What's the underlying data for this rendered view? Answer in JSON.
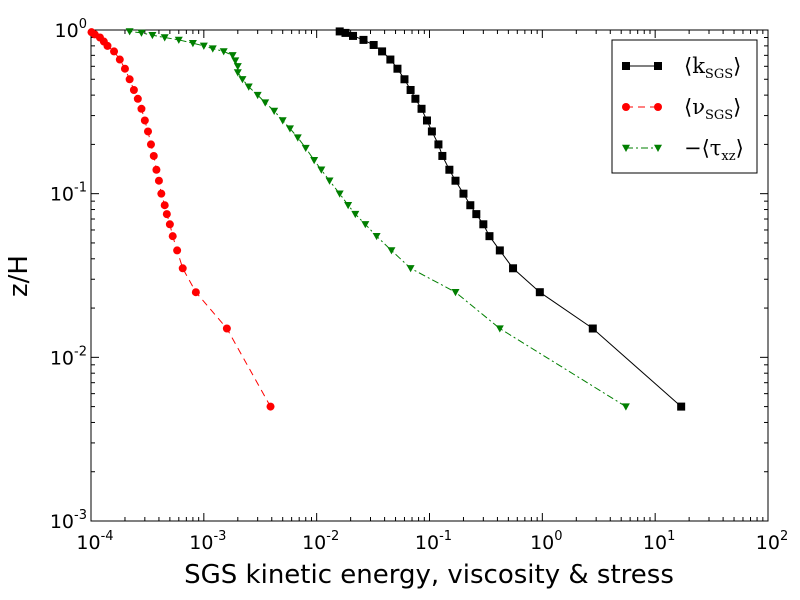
{
  "chart_data": {
    "type": "line",
    "xlabel": "SGS kinetic energy, viscosity & stress",
    "ylabel": "z/H",
    "xscale": "log",
    "yscale": "log",
    "xlim": [
      0.0001,
      100
    ],
    "ylim": [
      0.001,
      1
    ],
    "x_ticks": [
      {
        "base": "10",
        "exp": "-4"
      },
      {
        "base": "10",
        "exp": "-3"
      },
      {
        "base": "10",
        "exp": "-2"
      },
      {
        "base": "10",
        "exp": "-1"
      },
      {
        "base": "10",
        "exp": "0"
      },
      {
        "base": "10",
        "exp": "1"
      },
      {
        "base": "10",
        "exp": "2"
      }
    ],
    "y_ticks": [
      {
        "base": "10",
        "exp": "-3"
      },
      {
        "base": "10",
        "exp": "-2"
      },
      {
        "base": "10",
        "exp": "-1"
      },
      {
        "base": "10",
        "exp": "0"
      }
    ],
    "grid": false,
    "legend_position": "top-right",
    "series": [
      {
        "name": "⟨k_SGS⟩",
        "legend_main": "⟨k",
        "legend_sub": "SGS",
        "legend_close": "⟩",
        "color": "#000000",
        "marker": "square",
        "linestyle": "solid",
        "points": [
          [
            17,
            0.005
          ],
          [
            2.8,
            0.015
          ],
          [
            0.95,
            0.025
          ],
          [
            0.55,
            0.035
          ],
          [
            0.42,
            0.045
          ],
          [
            0.34,
            0.055
          ],
          [
            0.3,
            0.065
          ],
          [
            0.26,
            0.075
          ],
          [
            0.23,
            0.085
          ],
          [
            0.2,
            0.1
          ],
          [
            0.17,
            0.12
          ],
          [
            0.15,
            0.14
          ],
          [
            0.13,
            0.17
          ],
          [
            0.12,
            0.2
          ],
          [
            0.105,
            0.24
          ],
          [
            0.095,
            0.28
          ],
          [
            0.085,
            0.33
          ],
          [
            0.075,
            0.38
          ],
          [
            0.068,
            0.43
          ],
          [
            0.06,
            0.5
          ],
          [
            0.052,
            0.58
          ],
          [
            0.045,
            0.66
          ],
          [
            0.038,
            0.74
          ],
          [
            0.032,
            0.81
          ],
          [
            0.026,
            0.87
          ],
          [
            0.021,
            0.92
          ],
          [
            0.018,
            0.96
          ],
          [
            0.016,
            0.98
          ]
        ]
      },
      {
        "name": "⟨ν_SGS⟩",
        "legend_main": "⟨ν",
        "legend_sub": "SGS",
        "legend_close": "⟩",
        "color": "#ff0000",
        "marker": "circle",
        "linestyle": "dashed",
        "points": [
          [
            0.0039,
            0.005
          ],
          [
            0.0016,
            0.015
          ],
          [
            0.00085,
            0.025
          ],
          [
            0.00065,
            0.035
          ],
          [
            0.00058,
            0.045
          ],
          [
            0.00053,
            0.055
          ],
          [
            0.0005,
            0.065
          ],
          [
            0.00047,
            0.075
          ],
          [
            0.00045,
            0.085
          ],
          [
            0.00042,
            0.1
          ],
          [
            0.0004,
            0.12
          ],
          [
            0.00038,
            0.14
          ],
          [
            0.00036,
            0.17
          ],
          [
            0.00034,
            0.2
          ],
          [
            0.00032,
            0.24
          ],
          [
            0.0003,
            0.28
          ],
          [
            0.00028,
            0.33
          ],
          [
            0.00026,
            0.38
          ],
          [
            0.00024,
            0.43
          ],
          [
            0.00022,
            0.5
          ],
          [
            0.0002,
            0.58
          ],
          [
            0.00018,
            0.66
          ],
          [
            0.00016,
            0.74
          ],
          [
            0.00014,
            0.8
          ],
          [
            0.00013,
            0.85
          ],
          [
            0.00012,
            0.9
          ],
          [
            0.000108,
            0.94
          ],
          [
            0.000101,
            0.97
          ]
        ]
      },
      {
        "name": "−⟨τ_xz⟩",
        "legend_main": "−⟨τ",
        "legend_sub": "xz",
        "legend_close": "⟩",
        "color": "#007f00",
        "marker": "triangle-down",
        "linestyle": "dashdot",
        "points": [
          [
            5.5,
            0.005
          ],
          [
            0.42,
            0.015
          ],
          [
            0.17,
            0.025
          ],
          [
            0.068,
            0.035
          ],
          [
            0.046,
            0.045
          ],
          [
            0.034,
            0.055
          ],
          [
            0.027,
            0.065
          ],
          [
            0.022,
            0.075
          ],
          [
            0.019,
            0.085
          ],
          [
            0.016,
            0.1
          ],
          [
            0.013,
            0.12
          ],
          [
            0.011,
            0.14
          ],
          [
            0.0095,
            0.16
          ],
          [
            0.008,
            0.19
          ],
          [
            0.0068,
            0.22
          ],
          [
            0.0058,
            0.25
          ],
          [
            0.005,
            0.28
          ],
          [
            0.0042,
            0.32
          ],
          [
            0.0035,
            0.36
          ],
          [
            0.003,
            0.4
          ],
          [
            0.0025,
            0.45
          ],
          [
            0.0022,
            0.5
          ],
          [
            0.002,
            0.55
          ],
          [
            0.002,
            0.6
          ],
          [
            0.0019,
            0.65
          ],
          [
            0.0018,
            0.7
          ],
          [
            0.0015,
            0.74
          ],
          [
            0.0012,
            0.77
          ],
          [
            0.001,
            0.8
          ],
          [
            0.0008,
            0.83
          ],
          [
            0.0006,
            0.87
          ],
          [
            0.00045,
            0.9
          ],
          [
            0.00035,
            0.93
          ],
          [
            0.00028,
            0.96
          ],
          [
            0.00022,
            0.98
          ]
        ]
      }
    ]
  }
}
